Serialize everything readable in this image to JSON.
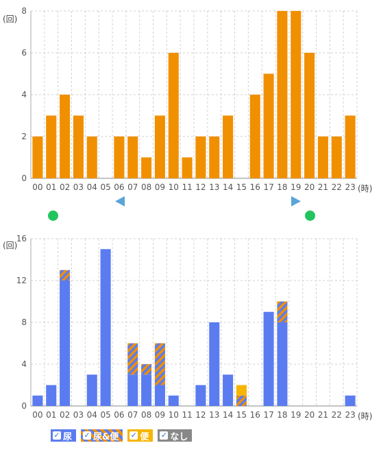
{
  "chart_data": [
    {
      "type": "bar",
      "categories": [
        "00",
        "01",
        "02",
        "03",
        "04",
        "05",
        "06",
        "07",
        "08",
        "09",
        "10",
        "11",
        "12",
        "13",
        "14",
        "15",
        "16",
        "17",
        "18",
        "19",
        "20",
        "21",
        "22",
        "23"
      ],
      "values": [
        2,
        3,
        4,
        3,
        2,
        0,
        2,
        2,
        1,
        3,
        6,
        1,
        2,
        2,
        3,
        0,
        4,
        5,
        8,
        8,
        6,
        2,
        2,
        3
      ],
      "ylabel": "(回)",
      "xlabel": "(時)",
      "ylim": [
        0,
        8
      ],
      "yticks": [
        0,
        2,
        4,
        6,
        8
      ],
      "grid": true,
      "colors": {
        "bar": "#f09000"
      }
    },
    {
      "type": "bar",
      "stacked": true,
      "categories": [
        "00",
        "01",
        "02",
        "03",
        "04",
        "05",
        "06",
        "07",
        "08",
        "09",
        "10",
        "11",
        "12",
        "13",
        "14",
        "15",
        "16",
        "17",
        "18",
        "19",
        "20",
        "21",
        "22",
        "23"
      ],
      "series": [
        {
          "name": "尿",
          "values": [
            1,
            2,
            12,
            0,
            3,
            15,
            0,
            3,
            3,
            2,
            1,
            0,
            2,
            8,
            3,
            0,
            0,
            9,
            8,
            0,
            0,
            0,
            0,
            1
          ],
          "color": "#5b7cf0"
        },
        {
          "name": "尿&便",
          "values": [
            0,
            0,
            1,
            0,
            0,
            0,
            0,
            3,
            1,
            4,
            0,
            0,
            0,
            0,
            0,
            1,
            0,
            0,
            2,
            0,
            0,
            0,
            0,
            0
          ],
          "color": "striped"
        },
        {
          "name": "便",
          "values": [
            0,
            0,
            0,
            0,
            0,
            0,
            0,
            0,
            0,
            0,
            0,
            0,
            0,
            0,
            0,
            1,
            0,
            0,
            0,
            0,
            0,
            0,
            0,
            0
          ],
          "color": "#f7b500"
        },
        {
          "name": "なし",
          "values": [
            0,
            0,
            0,
            0,
            0,
            0,
            0,
            0,
            0,
            0,
            0,
            0,
            0,
            0,
            0,
            0,
            0,
            0,
            0,
            0,
            0,
            0,
            0,
            0
          ],
          "color": "#888888"
        }
      ],
      "ylabel": "(回)",
      "xlabel": "(時)",
      "ylim": [
        0,
        16
      ],
      "yticks": [
        0,
        4,
        8,
        12,
        16
      ],
      "grid": true,
      "legend": "bottom-left"
    }
  ],
  "markers": {
    "left_arrow_icon": "left-triangle-icon",
    "right_arrow_icon": "right-triangle-icon",
    "dot_color": "#22c45e",
    "arrow_color": "#5aa5d8"
  },
  "legend": {
    "items": [
      {
        "label": "尿",
        "check": "✓"
      },
      {
        "label": "尿&便",
        "check": "✓"
      },
      {
        "label": "便",
        "check": "✓"
      },
      {
        "label": "なし",
        "check": "✓"
      }
    ]
  }
}
